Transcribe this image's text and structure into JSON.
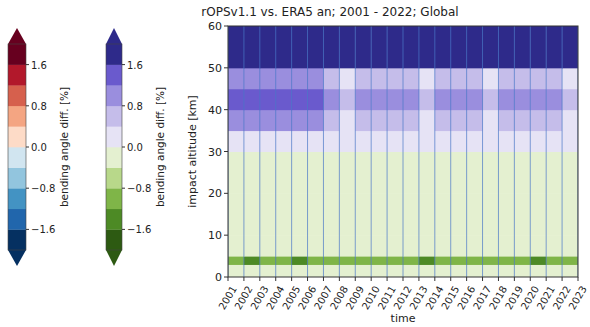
{
  "chart_data": {
    "type": "heatmap",
    "title": "rOPSv1.1 vs. ERA5 an; 2001 - 2022; Global",
    "x_label": "time",
    "y_label": "impact altitude [km]",
    "xlim": [
      2001,
      2023
    ],
    "xticks": [
      2001,
      2002,
      2003,
      2004,
      2005,
      2006,
      2007,
      2008,
      2009,
      2010,
      2011,
      2012,
      2013,
      2014,
      2015,
      2016,
      2017,
      2018,
      2019,
      2020,
      2021,
      2022,
      2023
    ],
    "ylim": [
      0,
      60
    ],
    "yticks": [
      0,
      10,
      20,
      30,
      40,
      50,
      60
    ],
    "grid": true,
    "x_bins": [
      2001,
      2002,
      2003,
      2004,
      2005,
      2006,
      2007,
      2008,
      2009,
      2010,
      2011,
      2012,
      2013,
      2014,
      2015,
      2016,
      2017,
      2018,
      2019,
      2020,
      2021,
      2022,
      2023
    ],
    "y_bins": [
      0,
      3,
      5,
      10,
      20,
      30,
      35,
      40,
      45,
      50,
      60
    ],
    "values": [
      [
        -0.3,
        -0.4,
        -0.3,
        -0.3,
        -0.4,
        -0.3,
        -0.3,
        -0.2,
        -0.3,
        -0.3,
        -0.3,
        -0.2,
        -0.3,
        -0.3,
        -0.2,
        -0.3,
        -0.3,
        -0.3,
        -0.2,
        -0.3,
        -0.3,
        -0.3
      ],
      [
        -1.2,
        -1.3,
        -1.1,
        -1.2,
        -1.3,
        -1.2,
        -1.1,
        -1.2,
        -1.2,
        -1.1,
        -1.2,
        -1.2,
        -1.3,
        -1.2,
        -1.1,
        -1.2,
        -1.2,
        -1.1,
        -1.2,
        -1.3,
        -1.2,
        -1.2
      ],
      [
        -0.1,
        -0.2,
        -0.1,
        -0.1,
        -0.1,
        -0.2,
        -0.1,
        -0.1,
        -0.1,
        -0.2,
        -0.1,
        -0.1,
        -0.1,
        -0.1,
        -0.2,
        -0.1,
        -0.1,
        -0.1,
        -0.1,
        -0.2,
        -0.1,
        -0.1
      ],
      [
        -0.1,
        -0.1,
        -0.1,
        -0.1,
        -0.1,
        -0.1,
        -0.1,
        -0.1,
        -0.1,
        -0.1,
        -0.1,
        -0.1,
        -0.1,
        -0.1,
        -0.1,
        -0.1,
        -0.1,
        -0.1,
        -0.1,
        -0.1,
        -0.1,
        -0.1
      ],
      [
        -0.1,
        -0.1,
        -0.1,
        -0.1,
        -0.1,
        -0.1,
        -0.1,
        -0.1,
        -0.1,
        -0.1,
        -0.1,
        -0.1,
        -0.1,
        -0.1,
        -0.1,
        -0.1,
        -0.1,
        -0.1,
        -0.1,
        -0.1,
        -0.1,
        -0.1
      ],
      [
        0.2,
        0.2,
        0.1,
        0.2,
        0.2,
        0.2,
        0.1,
        0.2,
        0.1,
        0.2,
        0.2,
        0.1,
        0.2,
        0.2,
        0.1,
        0.2,
        0.2,
        0.1,
        0.2,
        0.2,
        0.1,
        0.2
      ],
      [
        0.9,
        0.9,
        0.9,
        0.9,
        0.9,
        0.9,
        0.5,
        0.3,
        0.5,
        0.6,
        0.5,
        0.5,
        0.3,
        0.5,
        0.6,
        0.5,
        0.3,
        0.5,
        0.5,
        0.6,
        0.5,
        0.3
      ],
      [
        1.3,
        1.3,
        1.3,
        1.3,
        1.3,
        1.3,
        0.9,
        0.5,
        0.9,
        1.0,
        0.9,
        0.8,
        0.5,
        0.9,
        1.0,
        0.9,
        0.5,
        0.9,
        0.8,
        1.0,
        0.9,
        0.5
      ],
      [
        0.9,
        0.9,
        0.9,
        0.9,
        0.9,
        0.9,
        0.5,
        0.3,
        0.5,
        0.6,
        0.5,
        0.5,
        0.3,
        0.5,
        0.6,
        0.5,
        0.3,
        0.5,
        0.5,
        0.6,
        0.5,
        0.3
      ],
      [
        1.8,
        1.8,
        1.8,
        1.8,
        1.8,
        1.8,
        1.8,
        1.8,
        1.8,
        1.8,
        1.8,
        1.8,
        1.8,
        1.8,
        1.8,
        1.8,
        1.8,
        1.8,
        1.8,
        1.8,
        1.8,
        1.8
      ]
    ],
    "colorbars": [
      {
        "label": "bending angle diff. [%]",
        "range": [
          -2,
          2
        ],
        "levels": [
          -2,
          -1.6,
          -1.2,
          -0.8,
          -0.4,
          0,
          0.4,
          0.8,
          1.2,
          1.6,
          2
        ],
        "ticks": [
          {
            "value": -1.6,
            "label": "−1.6"
          },
          {
            "value": -0.8,
            "label": "−0.8"
          },
          {
            "value": 0,
            "label": "0.0"
          },
          0.8,
          1.6
        ],
        "colors": [
          "#053061",
          "#2166ac",
          "#4393c3",
          "#92c5de",
          "#d1e5f0",
          "#fddbc7",
          "#f4a582",
          "#d6604d",
          "#b2182b",
          "#67001f"
        ]
      },
      {
        "label": "bending angle diff. [%]",
        "range": [
          -2,
          2
        ],
        "levels": [
          -2,
          -1.6,
          -1.2,
          -0.8,
          -0.4,
          0,
          0.4,
          0.8,
          1.2,
          1.6,
          2
        ],
        "ticks": [
          {
            "value": -1.6,
            "label": "−1.6"
          },
          {
            "value": -0.8,
            "label": "−0.8"
          },
          {
            "value": 0,
            "label": "0.0"
          },
          0.8,
          1.6
        ],
        "colors": [
          "#2d5a12",
          "#4d8a25",
          "#7fb548",
          "#b8d88a",
          "#e4f0d0",
          "#e6e3f5",
          "#c5bdea",
          "#9a8ede",
          "#6a5acd",
          "#2e2a8a"
        ]
      }
    ]
  }
}
